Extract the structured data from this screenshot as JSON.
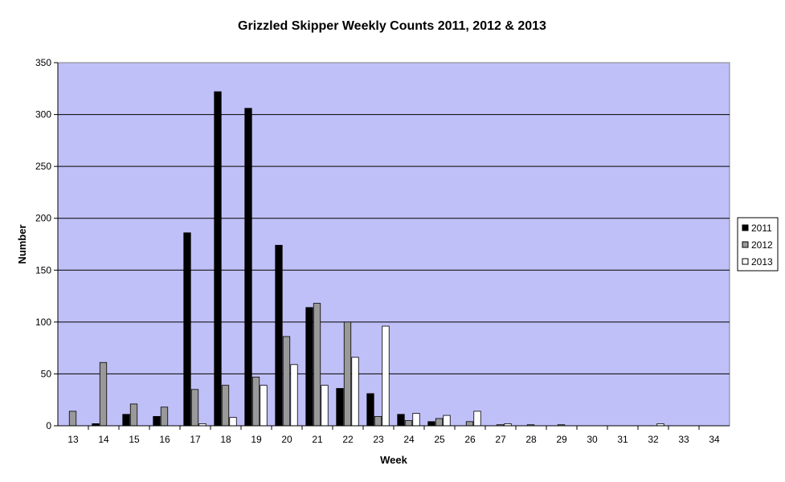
{
  "chart_data": {
    "type": "bar",
    "title": "Grizzled Skipper Weekly Counts 2011, 2012 & 2013",
    "xlabel": "Week",
    "ylabel": "Number",
    "ylim": [
      0,
      350
    ],
    "yticks": [
      "0",
      "50",
      "100",
      "150",
      "200",
      "250",
      "300",
      "350"
    ],
    "categories": [
      "13",
      "14",
      "15",
      "16",
      "17",
      "18",
      "19",
      "20",
      "21",
      "22",
      "23",
      "24",
      "25",
      "26",
      "27",
      "28",
      "29",
      "30",
      "31",
      "32",
      "33",
      "34"
    ],
    "series": [
      {
        "name": "2011",
        "color": "#000000",
        "values": [
          0,
          2,
          11,
          9,
          186,
          322,
          306,
          174,
          114,
          36,
          31,
          11,
          4,
          0,
          0,
          0,
          0,
          0,
          0,
          0,
          0,
          0
        ]
      },
      {
        "name": "2012",
        "color": "#999999",
        "values": [
          14,
          61,
          21,
          18,
          35,
          39,
          47,
          86,
          118,
          100,
          9,
          5,
          7,
          4,
          1,
          1,
          1,
          0,
          0,
          0,
          0,
          0
        ]
      },
      {
        "name": "2013",
        "color": "#ffffff",
        "values": [
          0,
          0,
          0,
          0,
          2,
          8,
          39,
          59,
          39,
          66,
          96,
          12,
          10,
          14,
          2,
          0,
          0,
          0,
          0,
          2,
          0,
          0
        ]
      }
    ],
    "grid": true,
    "legend_position": "right",
    "plot_background": "#c0c0f8"
  }
}
